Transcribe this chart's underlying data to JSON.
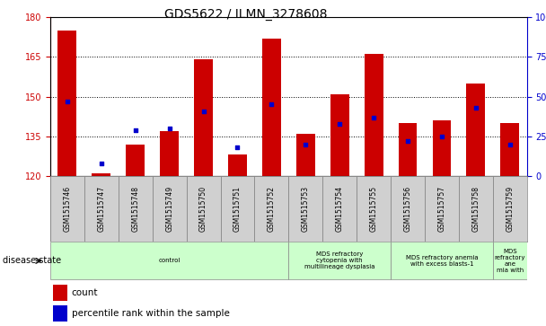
{
  "title": "GDS5622 / ILMN_3278608",
  "samples": [
    "GSM1515746",
    "GSM1515747",
    "GSM1515748",
    "GSM1515749",
    "GSM1515750",
    "GSM1515751",
    "GSM1515752",
    "GSM1515753",
    "GSM1515754",
    "GSM1515755",
    "GSM1515756",
    "GSM1515757",
    "GSM1515758",
    "GSM1515759"
  ],
  "counts": [
    175,
    121,
    132,
    137,
    164,
    128,
    172,
    136,
    151,
    166,
    140,
    141,
    155,
    140
  ],
  "percentile_ranks": [
    47,
    8,
    29,
    30,
    41,
    18,
    45,
    20,
    33,
    37,
    22,
    25,
    43,
    20
  ],
  "bar_color": "#cc0000",
  "dot_color": "#0000cc",
  "ylim_left": [
    120,
    180
  ],
  "ylim_right": [
    0,
    100
  ],
  "yticks_left": [
    120,
    135,
    150,
    165,
    180
  ],
  "yticks_right": [
    0,
    25,
    50,
    75,
    100
  ],
  "bar_width": 0.55,
  "disease_groups": [
    {
      "label": "control",
      "start": 0,
      "end": 7
    },
    {
      "label": "MDS refractory\ncytopenia with\nmultilineage dysplasia",
      "start": 7,
      "end": 10
    },
    {
      "label": "MDS refractory anemia\nwith excess blasts-1",
      "start": 10,
      "end": 13
    },
    {
      "label": "MDS\nrefractory\nane\nmia with",
      "start": 13,
      "end": 14
    }
  ],
  "disease_state_label": "disease state",
  "legend_count_label": "count",
  "legend_percentile_label": "percentile rank within the sample",
  "bg_color": "#ffffff",
  "left_axis_color": "#cc0000",
  "right_axis_color": "#0000cc",
  "sample_bg_color": "#d0d0d0",
  "disease_bg_color": "#ccffcc",
  "title_fontsize": 10,
  "sample_label_fontsize": 5.5,
  "disease_label_fontsize": 5.0,
  "legend_fontsize": 7.5
}
